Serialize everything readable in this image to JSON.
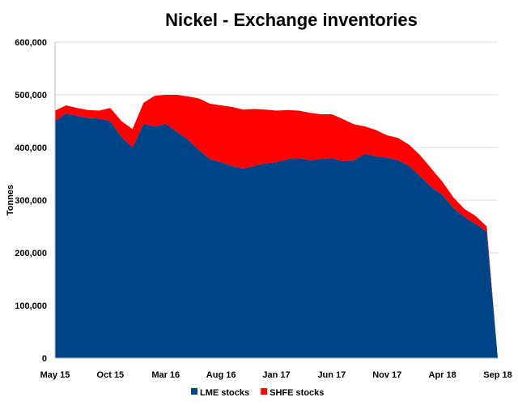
{
  "chart_data": {
    "type": "area",
    "title": "Nickel - Exchange inventories",
    "ylabel": "Tonnes",
    "xlabel": "",
    "ylim": [
      0,
      600000
    ],
    "y_ticks": [
      0,
      100000,
      200000,
      300000,
      400000,
      500000,
      600000
    ],
    "y_tick_labels": [
      "0",
      "100,000",
      "200,000",
      "300,000",
      "400,000",
      "500,000",
      "600,000"
    ],
    "x_tick_labels": [
      "May 15",
      "Oct 15",
      "Mar 16",
      "Aug 16",
      "Jan 17",
      "Jun 17",
      "Nov 17",
      "Apr 18",
      "Sep 18"
    ],
    "x": [
      "May 15",
      "Jun 15",
      "Jul 15",
      "Aug 15",
      "Sep 15",
      "Oct 15",
      "Nov 15",
      "Dec 15",
      "Jan 16",
      "Feb 16",
      "Mar 16",
      "Apr 16",
      "May 16",
      "Jun 16",
      "Jul 16",
      "Aug 16",
      "Sep 16",
      "Oct 16",
      "Nov 16",
      "Dec 16",
      "Jan 17",
      "Feb 17",
      "Mar 17",
      "Apr 17",
      "May 17",
      "Jun 17",
      "Jul 17",
      "Aug 17",
      "Sep 17",
      "Oct 17",
      "Nov 17",
      "Dec 17",
      "Jan 18",
      "Feb 18",
      "Mar 18",
      "Apr 18",
      "May 18",
      "Jun 18",
      "Jul 18",
      "Aug 18",
      "Sep 18"
    ],
    "stacked": true,
    "grid": true,
    "legend_position": "bottom",
    "series": [
      {
        "name": "LME stocks",
        "color": "#004488",
        "values": [
          450000,
          465000,
          460000,
          456000,
          455000,
          450000,
          420000,
          400000,
          445000,
          440000,
          445000,
          430000,
          415000,
          395000,
          378000,
          372000,
          365000,
          360000,
          365000,
          370000,
          372000,
          378000,
          380000,
          376000,
          378000,
          380000,
          374000,
          376000,
          388000,
          383000,
          381000,
          376000,
          365000,
          345000,
          325000,
          310000,
          285000,
          268000,
          255000,
          240000,
          0
        ]
      },
      {
        "name": "SHFE stocks",
        "color": "#ff0000",
        "values": [
          20000,
          15000,
          15000,
          15000,
          15000,
          25000,
          30000,
          35000,
          40000,
          58000,
          55000,
          70000,
          82000,
          98000,
          105000,
          108000,
          112000,
          112000,
          108000,
          102000,
          98000,
          93000,
          90000,
          90000,
          85000,
          83000,
          80000,
          68000,
          52000,
          50000,
          42000,
          42000,
          40000,
          40000,
          35000,
          25000,
          20000,
          15000,
          15000,
          10000,
          0
        ]
      }
    ]
  }
}
